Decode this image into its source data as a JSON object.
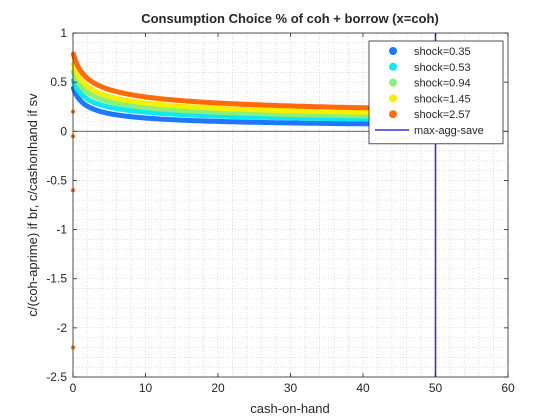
{
  "chart_data": {
    "type": "scatter",
    "title": "Consumption Choice % of coh + borrow (x=coh)",
    "xlabel": "cash-on-hand",
    "ylabel": "c/(coh-aprime) if br, c/cashonhand if sv",
    "xlim": [
      0,
      60
    ],
    "ylim": [
      -2.5,
      1
    ],
    "xticks": [
      "0",
      "10",
      "20",
      "30",
      "40",
      "50",
      "60"
    ],
    "yticks": [
      "-2.5",
      "-2",
      "-1.5",
      "-1",
      "-0.5",
      "0",
      "0.5",
      "1"
    ],
    "grid": "minor dotted",
    "legend_position": "top-right",
    "series": [
      {
        "name": "shock=0.35",
        "color": "#1e78ff",
        "start": 0.45,
        "asymptote": 0.02,
        "decay": 0.55
      },
      {
        "name": "shock=0.53",
        "color": "#10e8f0",
        "start": 0.53,
        "asymptote": 0.05,
        "decay": 0.5
      },
      {
        "name": "shock=0.94",
        "color": "#8af07a",
        "start": 0.62,
        "asymptote": 0.06,
        "decay": 0.47
      },
      {
        "name": "shock=1.45",
        "color": "#f4f000",
        "start": 0.7,
        "asymptote": 0.075,
        "decay": 0.45
      },
      {
        "name": "shock=2.57",
        "color": "#ff6a0a",
        "start": 0.8,
        "asymptote": 0.09,
        "decay": 0.42
      }
    ],
    "outliers": [
      {
        "x": 0,
        "y": 0.2
      },
      {
        "x": 0,
        "y": -0.05
      },
      {
        "x": 0,
        "y": -0.6
      },
      {
        "x": 0,
        "y": -2.2
      }
    ],
    "reference_line": {
      "name": "max-agg-save",
      "x": 50,
      "color": "#3333dd"
    },
    "zero_line": {
      "y": 0,
      "color": "#333333"
    }
  }
}
